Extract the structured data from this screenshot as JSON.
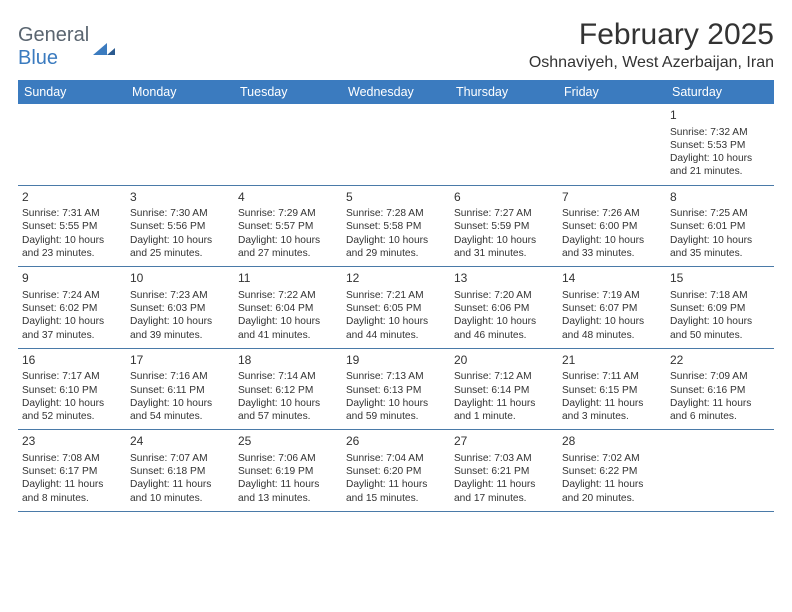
{
  "logo": {
    "textGray": "General",
    "textBlue": "Blue"
  },
  "title": "February 2025",
  "location": "Oshnaviyeh, West Azerbaijan, Iran",
  "colors": {
    "headerBg": "#3b7bbf",
    "headerText": "#ffffff",
    "rowBorder": "#4a7aa8",
    "bodyText": "#333333",
    "logoGray": "#5a6570",
    "logoBlue": "#3b7bbf"
  },
  "dayNames": [
    "Sunday",
    "Monday",
    "Tuesday",
    "Wednesday",
    "Thursday",
    "Friday",
    "Saturday"
  ],
  "weeks": [
    [
      {
        "n": "",
        "sunrise": "",
        "sunset": "",
        "daylight": ""
      },
      {
        "n": "",
        "sunrise": "",
        "sunset": "",
        "daylight": ""
      },
      {
        "n": "",
        "sunrise": "",
        "sunset": "",
        "daylight": ""
      },
      {
        "n": "",
        "sunrise": "",
        "sunset": "",
        "daylight": ""
      },
      {
        "n": "",
        "sunrise": "",
        "sunset": "",
        "daylight": ""
      },
      {
        "n": "",
        "sunrise": "",
        "sunset": "",
        "daylight": ""
      },
      {
        "n": "1",
        "sunrise": "Sunrise: 7:32 AM",
        "sunset": "Sunset: 5:53 PM",
        "daylight": "Daylight: 10 hours and 21 minutes."
      }
    ],
    [
      {
        "n": "2",
        "sunrise": "Sunrise: 7:31 AM",
        "sunset": "Sunset: 5:55 PM",
        "daylight": "Daylight: 10 hours and 23 minutes."
      },
      {
        "n": "3",
        "sunrise": "Sunrise: 7:30 AM",
        "sunset": "Sunset: 5:56 PM",
        "daylight": "Daylight: 10 hours and 25 minutes."
      },
      {
        "n": "4",
        "sunrise": "Sunrise: 7:29 AM",
        "sunset": "Sunset: 5:57 PM",
        "daylight": "Daylight: 10 hours and 27 minutes."
      },
      {
        "n": "5",
        "sunrise": "Sunrise: 7:28 AM",
        "sunset": "Sunset: 5:58 PM",
        "daylight": "Daylight: 10 hours and 29 minutes."
      },
      {
        "n": "6",
        "sunrise": "Sunrise: 7:27 AM",
        "sunset": "Sunset: 5:59 PM",
        "daylight": "Daylight: 10 hours and 31 minutes."
      },
      {
        "n": "7",
        "sunrise": "Sunrise: 7:26 AM",
        "sunset": "Sunset: 6:00 PM",
        "daylight": "Daylight: 10 hours and 33 minutes."
      },
      {
        "n": "8",
        "sunrise": "Sunrise: 7:25 AM",
        "sunset": "Sunset: 6:01 PM",
        "daylight": "Daylight: 10 hours and 35 minutes."
      }
    ],
    [
      {
        "n": "9",
        "sunrise": "Sunrise: 7:24 AM",
        "sunset": "Sunset: 6:02 PM",
        "daylight": "Daylight: 10 hours and 37 minutes."
      },
      {
        "n": "10",
        "sunrise": "Sunrise: 7:23 AM",
        "sunset": "Sunset: 6:03 PM",
        "daylight": "Daylight: 10 hours and 39 minutes."
      },
      {
        "n": "11",
        "sunrise": "Sunrise: 7:22 AM",
        "sunset": "Sunset: 6:04 PM",
        "daylight": "Daylight: 10 hours and 41 minutes."
      },
      {
        "n": "12",
        "sunrise": "Sunrise: 7:21 AM",
        "sunset": "Sunset: 6:05 PM",
        "daylight": "Daylight: 10 hours and 44 minutes."
      },
      {
        "n": "13",
        "sunrise": "Sunrise: 7:20 AM",
        "sunset": "Sunset: 6:06 PM",
        "daylight": "Daylight: 10 hours and 46 minutes."
      },
      {
        "n": "14",
        "sunrise": "Sunrise: 7:19 AM",
        "sunset": "Sunset: 6:07 PM",
        "daylight": "Daylight: 10 hours and 48 minutes."
      },
      {
        "n": "15",
        "sunrise": "Sunrise: 7:18 AM",
        "sunset": "Sunset: 6:09 PM",
        "daylight": "Daylight: 10 hours and 50 minutes."
      }
    ],
    [
      {
        "n": "16",
        "sunrise": "Sunrise: 7:17 AM",
        "sunset": "Sunset: 6:10 PM",
        "daylight": "Daylight: 10 hours and 52 minutes."
      },
      {
        "n": "17",
        "sunrise": "Sunrise: 7:16 AM",
        "sunset": "Sunset: 6:11 PM",
        "daylight": "Daylight: 10 hours and 54 minutes."
      },
      {
        "n": "18",
        "sunrise": "Sunrise: 7:14 AM",
        "sunset": "Sunset: 6:12 PM",
        "daylight": "Daylight: 10 hours and 57 minutes."
      },
      {
        "n": "19",
        "sunrise": "Sunrise: 7:13 AM",
        "sunset": "Sunset: 6:13 PM",
        "daylight": "Daylight: 10 hours and 59 minutes."
      },
      {
        "n": "20",
        "sunrise": "Sunrise: 7:12 AM",
        "sunset": "Sunset: 6:14 PM",
        "daylight": "Daylight: 11 hours and 1 minute."
      },
      {
        "n": "21",
        "sunrise": "Sunrise: 7:11 AM",
        "sunset": "Sunset: 6:15 PM",
        "daylight": "Daylight: 11 hours and 3 minutes."
      },
      {
        "n": "22",
        "sunrise": "Sunrise: 7:09 AM",
        "sunset": "Sunset: 6:16 PM",
        "daylight": "Daylight: 11 hours and 6 minutes."
      }
    ],
    [
      {
        "n": "23",
        "sunrise": "Sunrise: 7:08 AM",
        "sunset": "Sunset: 6:17 PM",
        "daylight": "Daylight: 11 hours and 8 minutes."
      },
      {
        "n": "24",
        "sunrise": "Sunrise: 7:07 AM",
        "sunset": "Sunset: 6:18 PM",
        "daylight": "Daylight: 11 hours and 10 minutes."
      },
      {
        "n": "25",
        "sunrise": "Sunrise: 7:06 AM",
        "sunset": "Sunset: 6:19 PM",
        "daylight": "Daylight: 11 hours and 13 minutes."
      },
      {
        "n": "26",
        "sunrise": "Sunrise: 7:04 AM",
        "sunset": "Sunset: 6:20 PM",
        "daylight": "Daylight: 11 hours and 15 minutes."
      },
      {
        "n": "27",
        "sunrise": "Sunrise: 7:03 AM",
        "sunset": "Sunset: 6:21 PM",
        "daylight": "Daylight: 11 hours and 17 minutes."
      },
      {
        "n": "28",
        "sunrise": "Sunrise: 7:02 AM",
        "sunset": "Sunset: 6:22 PM",
        "daylight": "Daylight: 11 hours and 20 minutes."
      },
      {
        "n": "",
        "sunrise": "",
        "sunset": "",
        "daylight": ""
      }
    ]
  ]
}
